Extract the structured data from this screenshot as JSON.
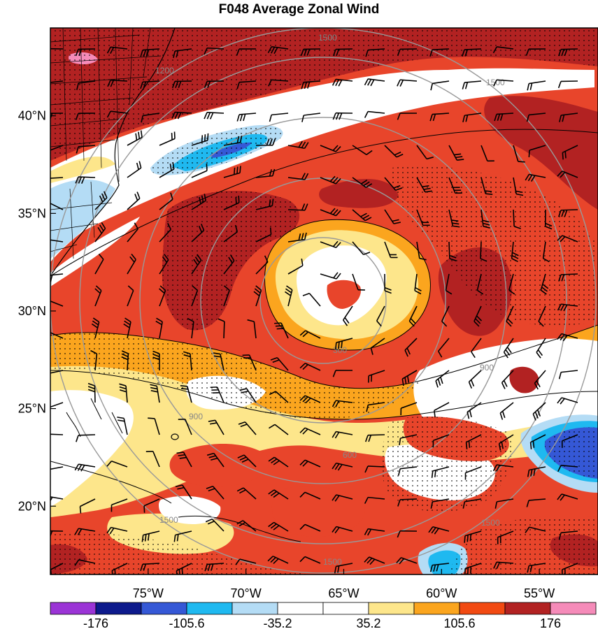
{
  "title": "F048 Average Zonal Wind",
  "map": {
    "lon_range": [
      -80,
      -52
    ],
    "lat_range": [
      16.5,
      44.5
    ],
    "lat_ticks": [
      {
        "value": 40,
        "label": "40°N"
      },
      {
        "value": 35,
        "label": "35°N"
      },
      {
        "value": 30,
        "label": "30°N"
      },
      {
        "value": 25,
        "label": "25°N"
      },
      {
        "value": 20,
        "label": "20°N"
      }
    ],
    "lon_ticks": [
      {
        "value": -75,
        "label": "75°W"
      },
      {
        "value": -70,
        "label": "70°W"
      },
      {
        "value": -65,
        "label": "65°W"
      },
      {
        "value": -60,
        "label": "60°W"
      },
      {
        "value": -55,
        "label": "55°W"
      }
    ],
    "range_rings": [
      "300",
      "600",
      "900",
      "1200",
      "1500"
    ],
    "colors": {
      "dark_red": "#b22222",
      "red": "#e8452b",
      "orange_red": "#f26b1d",
      "orange": "#fba51e",
      "light_yellow": "#fde68b",
      "white": "#ffffff",
      "light_blue": "#b4dcf5",
      "cyan": "#1fb9f0",
      "blue": "#3558d6",
      "pink": "#f58bb9"
    }
  },
  "colorbar": {
    "colors": [
      "#9b34d6",
      "#0d1a8c",
      "#3558d6",
      "#1fb9f0",
      "#b4dcf5",
      "#ffffff",
      "#ffffff",
      "#fde68b",
      "#fba51e",
      "#f24a12",
      "#b22222",
      "#f58bb9"
    ],
    "tick_labels": [
      "-176",
      "-105.6",
      "-35.2",
      "35.2",
      "105.6",
      "176"
    ]
  }
}
